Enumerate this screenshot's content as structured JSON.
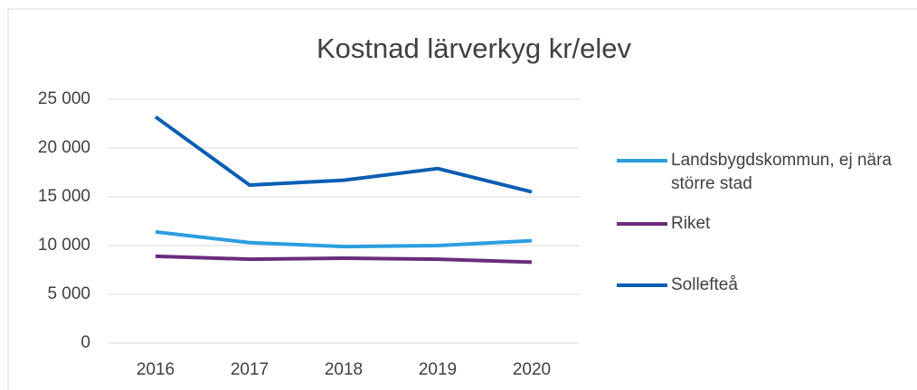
{
  "chart_data": {
    "type": "line",
    "title": "Kostnad lärverkyg kr/elev",
    "categories": [
      "2016",
      "2017",
      "2018",
      "2019",
      "2020"
    ],
    "series": [
      {
        "name": "Landsbygdskommun, ej nära större stad",
        "color": "#2b9ee0",
        "values": [
          11400,
          10300,
          9900,
          10000,
          10500
        ]
      },
      {
        "name": "Riket",
        "color": "#6a2b7d",
        "values": [
          8900,
          8600,
          8700,
          8600,
          8300
        ]
      },
      {
        "name": "Sollefteå",
        "color": "#0b5eb3",
        "values": [
          23200,
          16200,
          16700,
          17900,
          15500
        ]
      }
    ],
    "ylim": [
      0,
      25000
    ],
    "yticks": [
      0,
      {
        "value": 5000,
        "label": "5 000"
      },
      {
        "value": 10000,
        "label": "10 000"
      },
      {
        "value": 15000,
        "label": "15 000"
      },
      {
        "value": 20000,
        "label": "20 000"
      },
      {
        "value": 25000,
        "label": "25 000"
      }
    ],
    "grid": true,
    "legend": "right"
  }
}
